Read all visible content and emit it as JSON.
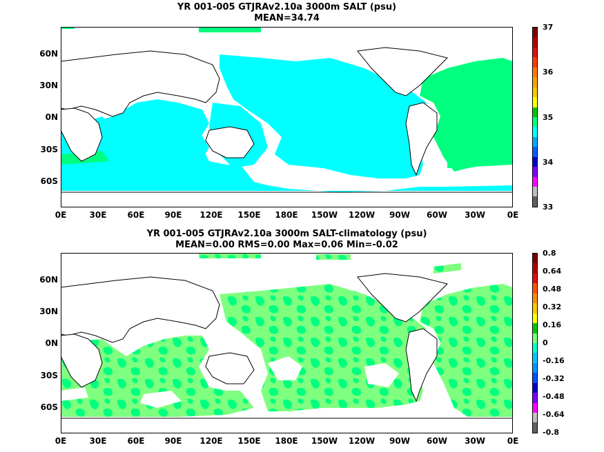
{
  "top": {
    "title_line1": "YR 001-005 GTJRAv2.10a 3000m SALT (psu)",
    "title_line2": "MEAN=34.74",
    "colorbar_labels": [
      "37",
      "36",
      "35",
      "34",
      "33"
    ],
    "colorbar_colors": [
      "#7a0000",
      "#b40000",
      "#e01010",
      "#ff3c00",
      "#ff7800",
      "#ffa000",
      "#ffc800",
      "#ffff00",
      "#00c800",
      "#00ff7f",
      "#00ffff",
      "#00aaff",
      "#0060ff",
      "#0000d0",
      "#8000ff",
      "#ff00ff",
      "#c0c0c0",
      "#606060"
    ],
    "ocean_color": "#00ffff",
    "highlight_color": "#00ff7f"
  },
  "bottom": {
    "title_line1": "YR 001-005 GTJRAv2.10a 3000m SALT-climatology (psu)",
    "title_line2": "MEAN=0.00   RMS=0.00   Max=0.06   Min=-0.02",
    "colorbar_labels": [
      "0.8",
      "0.64",
      "0.48",
      "0.32",
      "0.16",
      "0",
      "-0.16",
      "-0.32",
      "-0.48",
      "-0.64",
      "-0.8"
    ],
    "colorbar_colors": [
      "#7a0000",
      "#b40000",
      "#e01010",
      "#ff5000",
      "#ff8c00",
      "#ffc800",
      "#ffff00",
      "#00c800",
      "#7fff7f",
      "#00ffd0",
      "#00c8ff",
      "#0096ff",
      "#0050ff",
      "#0000c8",
      "#8000ff",
      "#ff00ff",
      "#c0c0c0",
      "#606060"
    ],
    "fill_primary": "#7fff7f",
    "fill_secondary": "#00ff7f"
  },
  "axes": {
    "y_labels": [
      "60N",
      "30N",
      "0N",
      "30S",
      "60S"
    ],
    "x_labels": [
      "0E",
      "30E",
      "60E",
      "90E",
      "120E",
      "150E",
      "180E",
      "150W",
      "120W",
      "90W",
      "60W",
      "30W",
      "0E"
    ]
  }
}
